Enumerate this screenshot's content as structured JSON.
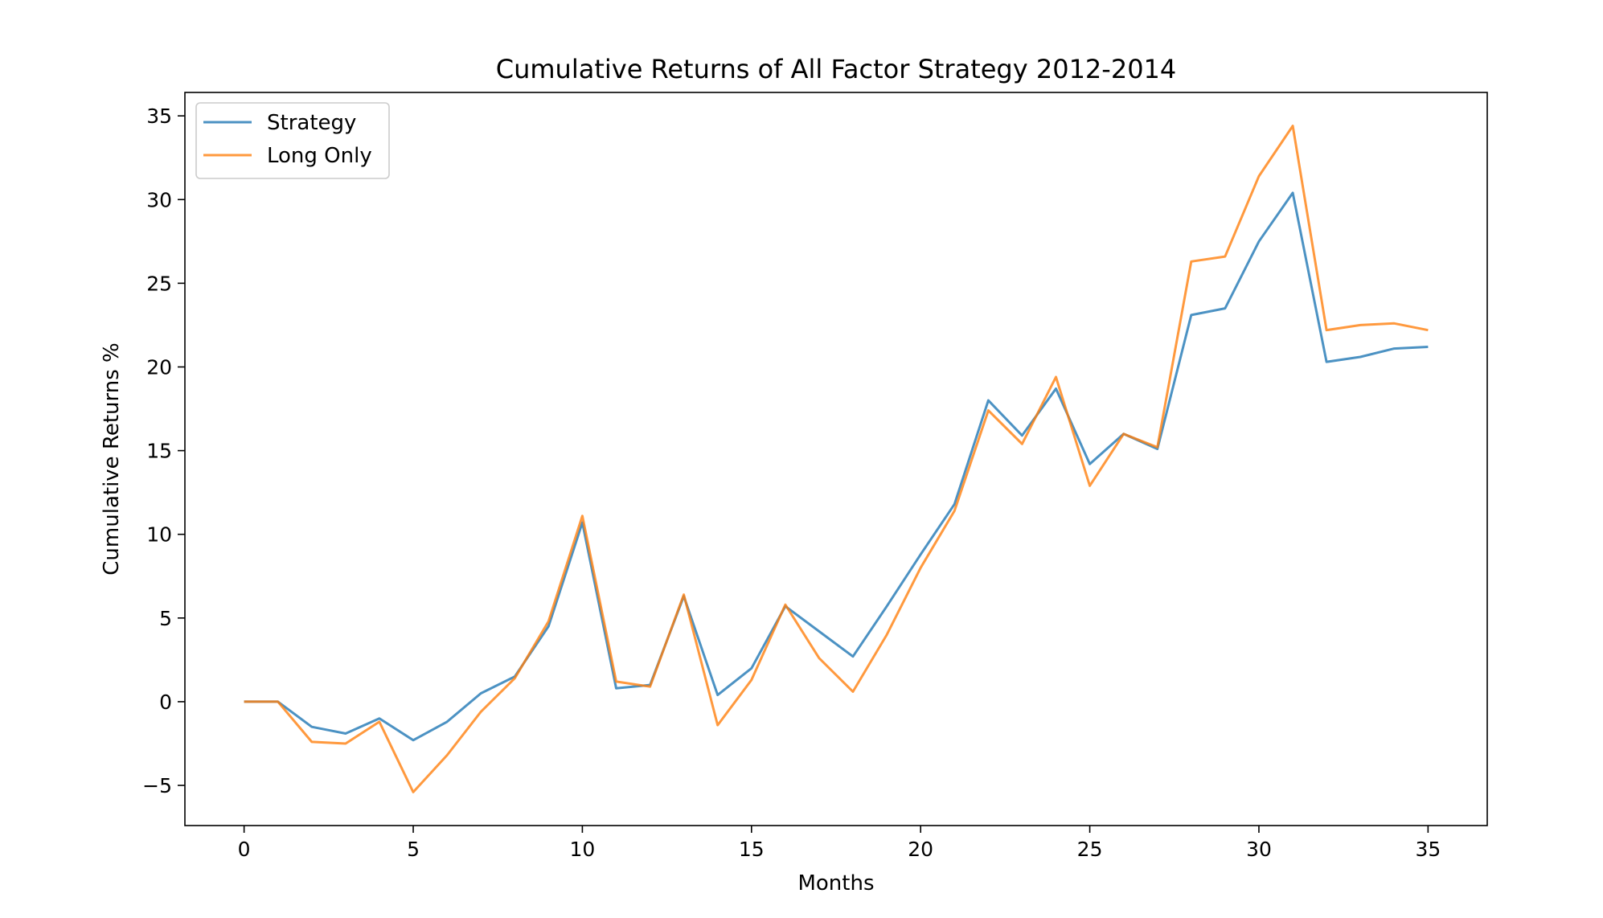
{
  "chart_data": {
    "type": "line",
    "title": "Cumulative Returns of All Factor Strategy 2012-2014",
    "xlabel": "Months",
    "ylabel": "Cumulative Returns %",
    "xlim": [
      -1.75,
      36.75
    ],
    "ylim": [
      -7.4,
      36.4
    ],
    "xticks": [
      0,
      5,
      10,
      15,
      20,
      25,
      30,
      35
    ],
    "yticks": [
      -5,
      0,
      5,
      10,
      15,
      20,
      25,
      30,
      35
    ],
    "xtick_labels": [
      "0",
      "5",
      "10",
      "15",
      "20",
      "25",
      "30",
      "35"
    ],
    "ytick_labels": [
      "−5",
      "0",
      "5",
      "10",
      "15",
      "20",
      "25",
      "30",
      "35"
    ],
    "grid": false,
    "legend_position": "upper left",
    "x": [
      0,
      1,
      2,
      3,
      4,
      5,
      6,
      7,
      8,
      9,
      10,
      11,
      12,
      13,
      14,
      15,
      16,
      17,
      18,
      19,
      20,
      21,
      22,
      23,
      24,
      25,
      26,
      27,
      28,
      29,
      30,
      31,
      32,
      33,
      34,
      35
    ],
    "series": [
      {
        "name": "Strategy",
        "color": "#1f77b4",
        "values": [
          0.0,
          0.0,
          -1.5,
          -1.9,
          -1.0,
          -2.3,
          -1.2,
          0.5,
          1.5,
          4.5,
          10.7,
          0.8,
          1.0,
          6.3,
          0.4,
          2.0,
          5.7,
          4.2,
          2.7,
          5.7,
          8.8,
          11.8,
          18.0,
          15.9,
          18.7,
          14.2,
          16.0,
          15.1,
          23.1,
          23.5,
          27.5,
          30.4,
          20.3,
          20.6,
          21.1,
          21.2
        ]
      },
      {
        "name": "Long Only",
        "color": "#ff7f0e",
        "values": [
          0.0,
          0.0,
          -2.4,
          -2.5,
          -1.2,
          -5.4,
          -3.2,
          -0.6,
          1.4,
          4.8,
          11.1,
          1.2,
          0.9,
          6.4,
          -1.4,
          1.3,
          5.8,
          2.6,
          0.6,
          4.0,
          8.0,
          11.4,
          17.4,
          15.4,
          19.4,
          12.9,
          16.0,
          15.2,
          26.3,
          26.6,
          31.4,
          34.4,
          22.2,
          22.5,
          22.6,
          22.2
        ]
      }
    ]
  }
}
